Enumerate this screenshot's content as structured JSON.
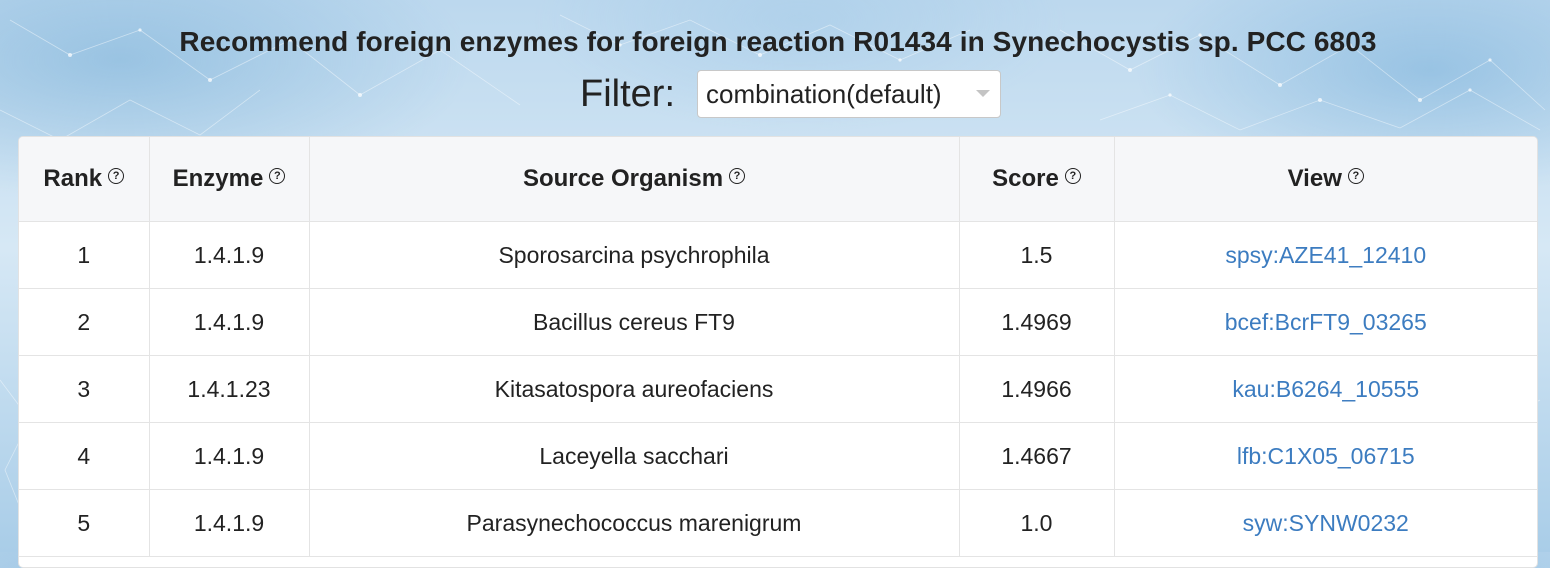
{
  "page": {
    "title": "Recommend foreign enzymes for foreign reaction R01434 in Synechocystis sp. PCC 6803"
  },
  "filter": {
    "label": "Filter:",
    "selected": "combination(default)"
  },
  "table": {
    "headers": [
      "Rank",
      "Enzyme",
      "Source Organism",
      "Score",
      "View"
    ],
    "help_glyph": "?",
    "rows": [
      {
        "rank": "1",
        "enzyme": "1.4.1.9",
        "organism": "Sporosarcina psychrophila",
        "score": "1.5",
        "view": "spsy:AZE41_12410"
      },
      {
        "rank": "2",
        "enzyme": "1.4.1.9",
        "organism": "Bacillus cereus FT9",
        "score": "1.4969",
        "view": "bcef:BcrFT9_03265"
      },
      {
        "rank": "3",
        "enzyme": "1.4.1.23",
        "organism": "Kitasatospora aureofaciens",
        "score": "1.4966",
        "view": "kau:B6264_10555"
      },
      {
        "rank": "4",
        "enzyme": "1.4.1.9",
        "organism": "Laceyella sacchari",
        "score": "1.4667",
        "view": "lfb:C1X05_06715"
      },
      {
        "rank": "5",
        "enzyme": "1.4.1.9",
        "organism": "Parasynechococcus marenigrum",
        "score": "1.0",
        "view": "syw:SYNW0232"
      }
    ]
  },
  "colors": {
    "link": "#3c7cc0",
    "header_bg": "#f6f7f9",
    "text": "#222222"
  },
  "icons": {
    "help": "question-circle-icon",
    "dropdown": "caret-down-icon"
  }
}
